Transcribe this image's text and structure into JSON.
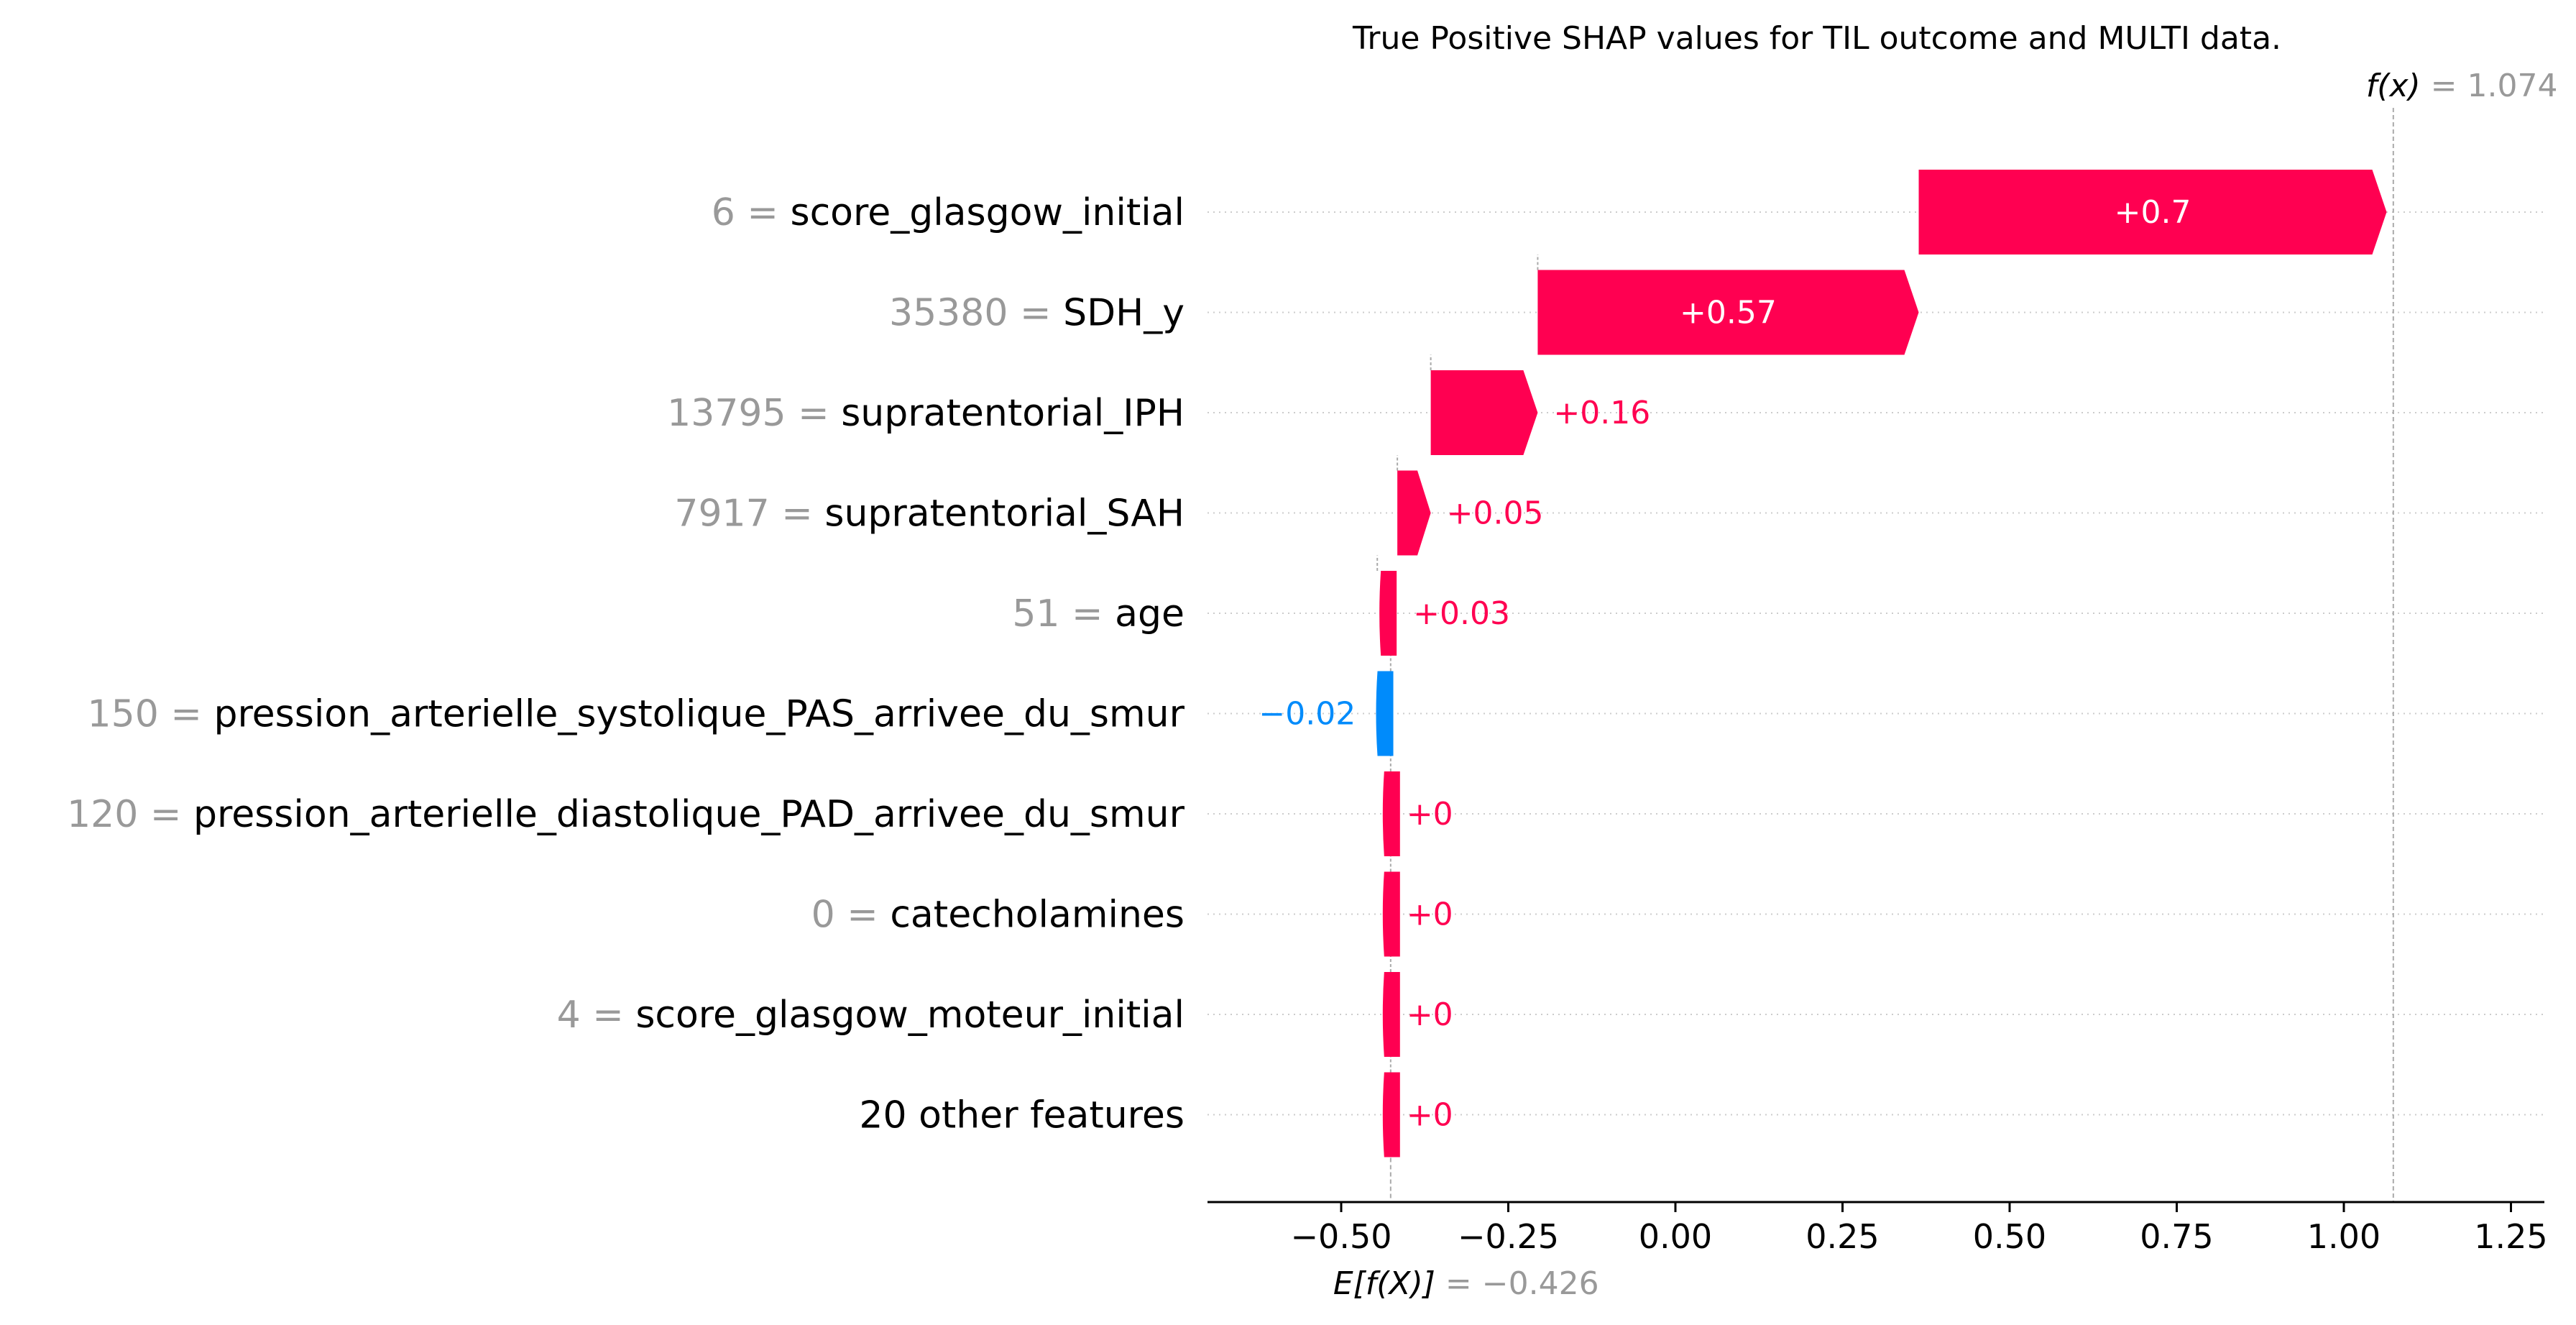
{
  "chart_data": {
    "type": "waterfall",
    "title": "True Positive SHAP values for TIL outcome and MULTI data.",
    "base_value": -0.426,
    "output_value": 1.074,
    "fx_label": {
      "name": "f(x)",
      "eq": " = ",
      "value": "1.074"
    },
    "efx_label": {
      "name": "E[f(X)]",
      "eq": " = ",
      "value": "−0.426"
    },
    "xlim": [
      -0.7,
      1.3
    ],
    "xticks": [
      -0.5,
      -0.25,
      0.0,
      0.25,
      0.5,
      0.75,
      1.0,
      1.25
    ],
    "xtick_labels": [
      "−0.50",
      "−0.25",
      "0.00",
      "0.25",
      "0.50",
      "0.75",
      "1.00",
      "1.25"
    ],
    "features": [
      {
        "value": "6",
        "name": "score_glasgow_initial",
        "shap": 0.7,
        "label": "+0.7"
      },
      {
        "value": "35380",
        "name": "SDH_y",
        "shap": 0.57,
        "label": "+0.57"
      },
      {
        "value": "13795",
        "name": "supratentorial_IPH",
        "shap": 0.16,
        "label": "+0.16"
      },
      {
        "value": "7917",
        "name": "supratentorial_SAH",
        "shap": 0.05,
        "label": "+0.05"
      },
      {
        "value": "51",
        "name": "age",
        "shap": 0.03,
        "label": "+0.03"
      },
      {
        "value": "150",
        "name": "pression_arterielle_systolique_PAS_arrivee_du_smur",
        "shap": -0.02,
        "label": "−0.02"
      },
      {
        "value": "120",
        "name": "pression_arterielle_diastolique_PAD_arrivee_du_smur",
        "shap": 0.0,
        "label": "+0"
      },
      {
        "value": "0",
        "name": "catecholamines",
        "shap": 0.0,
        "label": "+0"
      },
      {
        "value": "4",
        "name": "score_glasgow_moteur_initial",
        "shap": 0.0,
        "label": "+0"
      },
      {
        "value": "",
        "name": "20 other features",
        "shap": 0.0,
        "label": "+0"
      }
    ],
    "colors": {
      "positive": "#ff0051",
      "negative": "#008bfb",
      "value_text": "#999999",
      "label_text": "#000000",
      "axis": "#000000",
      "grid": "#cccccc"
    }
  }
}
